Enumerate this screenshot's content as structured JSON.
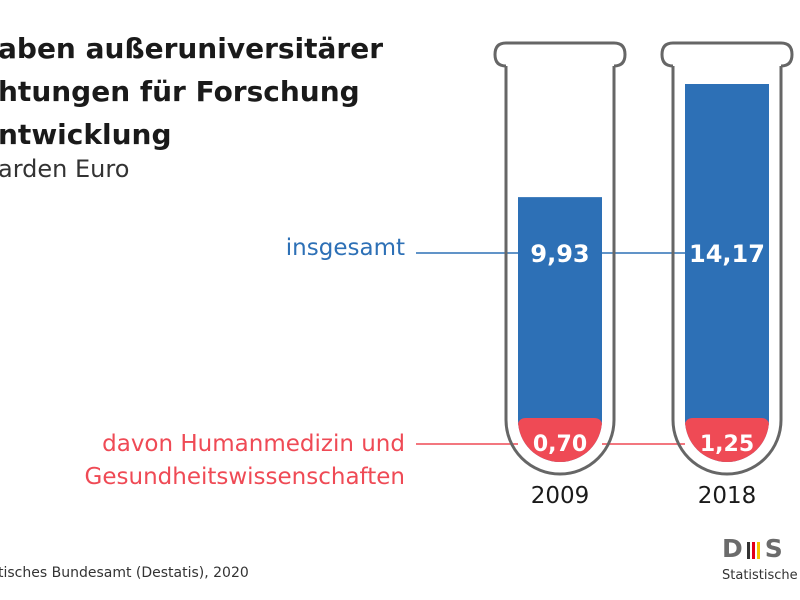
{
  "title_lines": [
    "aben außeruniversitärer",
    "htungen für Forschung",
    "ntwicklung"
  ],
  "subtitle": "arden Euro",
  "source": "tisches Bundesamt (Destatis), 2020",
  "logo": {
    "mark_left": "D",
    "mark_right": "S",
    "text": "Statistische"
  },
  "colors": {
    "total": "#2d70b6",
    "health": "#ef4a55",
    "outline": "#666666"
  },
  "chart_data": {
    "type": "bar",
    "title": "aben außeruniversitärer htungen für Forschung ntwicklung",
    "subtitle": "arden Euro",
    "categories": [
      "2009",
      "2018"
    ],
    "series": [
      {
        "name": "insgesamt",
        "values": [
          9.93,
          14.17
        ],
        "labels": [
          "9,93",
          "14,17"
        ]
      },
      {
        "name_lines": [
          "davon Humanmedizin und",
          "Gesundheitswissenschaften"
        ],
        "values": [
          0.7,
          1.25
        ],
        "labels": [
          "0,70",
          "1,25"
        ]
      }
    ]
  }
}
